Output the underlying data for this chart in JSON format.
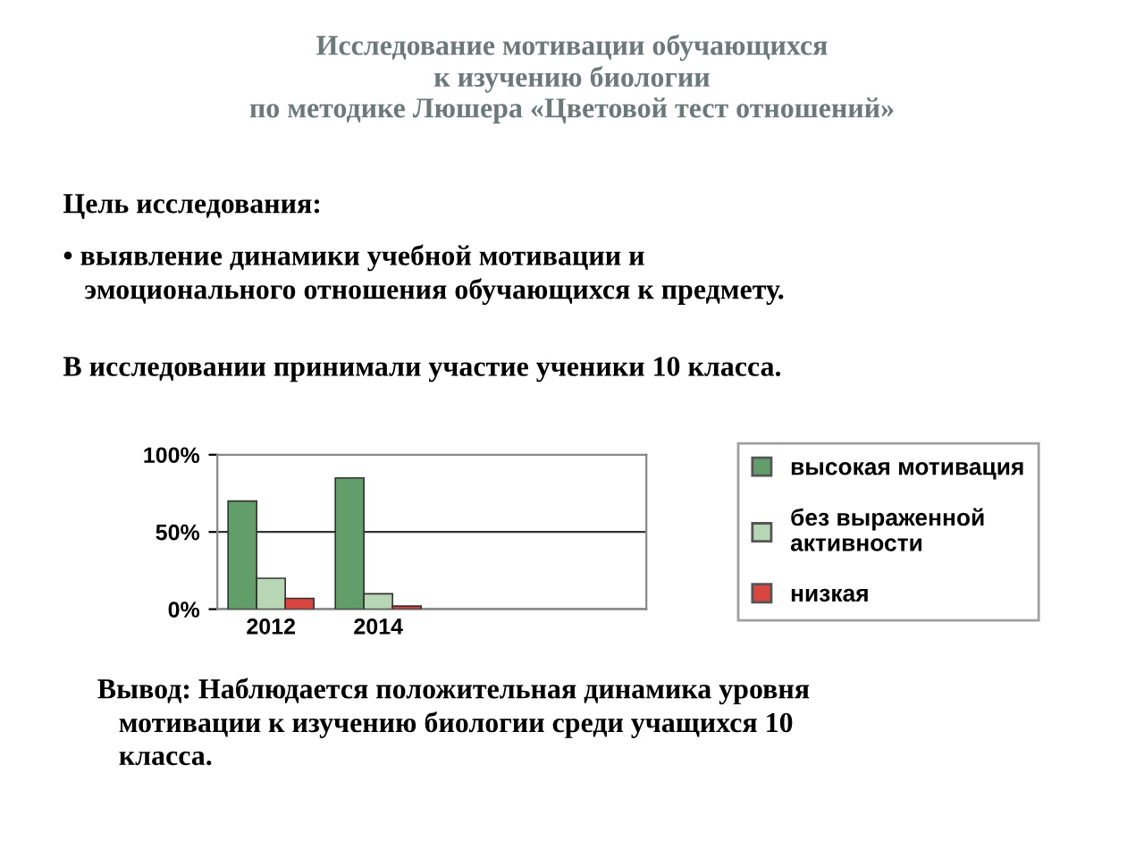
{
  "chart_data": {
    "type": "bar",
    "title": "Исследование мотивации обучающихся\nк изучению биологии\nпо методике Люшера «Цветовой тест отношений»",
    "annotations": [
      "Цель исследования:",
      "• выявление динамики учебной мотивации и\n   эмоционального отношения обучающихся к предмету.",
      "В исследовании принимали участие ученики 10 класса.",
      "Вывод: Наблюдается положительная динамика уровня\n   мотивации к изучению биологии среди учащихся 10\n   класса."
    ],
    "categories": [
      "2012",
      "2014",
      null,
      null
    ],
    "series": [
      {
        "name": "высокая мотивация",
        "color": "#629e6a",
        "values": [
          70,
          85,
          null,
          null
        ]
      },
      {
        "name": "без выраженной\nактивности",
        "color": "#b7d6b3",
        "values": [
          20,
          10,
          null,
          null
        ]
      },
      {
        "name": "низкая",
        "color": "#d9463f",
        "values": [
          7,
          2,
          null,
          null
        ]
      }
    ],
    "ylim": [
      0,
      100
    ],
    "yticks": [
      {
        "value": 0,
        "label": "0%"
      },
      {
        "value": 50,
        "label": "50%"
      },
      {
        "value": 100,
        "label": "100%"
      }
    ],
    "grid": "y",
    "legend": "right"
  }
}
